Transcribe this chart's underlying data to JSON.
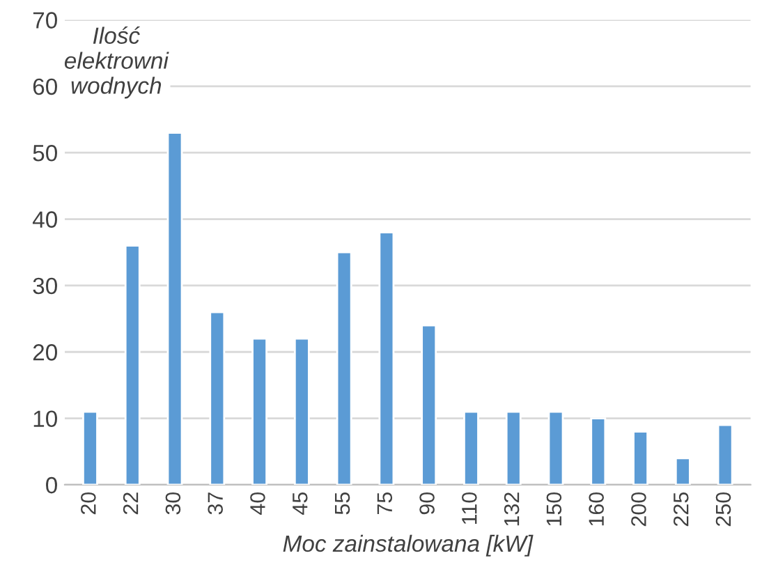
{
  "chart_data": {
    "type": "bar",
    "xlabel": "Moc zainstalowana [kW]",
    "ylabel": "Ilość elektrowni wodnych",
    "categories": [
      "20",
      "22",
      "30",
      "37",
      "40",
      "45",
      "55",
      "75",
      "90",
      "110",
      "132",
      "150",
      "160",
      "200",
      "225",
      "250"
    ],
    "values": [
      11,
      36,
      53,
      26,
      22,
      22,
      35,
      38,
      24,
      11,
      11,
      11,
      10,
      8,
      4,
      9
    ],
    "color": "#5b9bd5",
    "ylim": [
      0,
      70
    ],
    "yticks": [
      0,
      10,
      20,
      30,
      40,
      50,
      60,
      70
    ],
    "grid": "y"
  }
}
